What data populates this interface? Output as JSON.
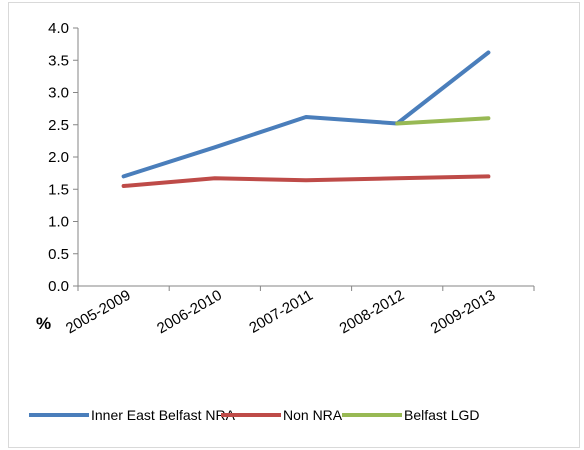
{
  "chart_data": {
    "type": "line",
    "categories": [
      "2005-2009",
      "2006-2010",
      "2007-2011",
      "2008-2012",
      "2009-2013"
    ],
    "ylim": [
      0,
      4.0
    ],
    "yticks": [
      "0.0",
      "0.5",
      "1.0",
      "1.5",
      "2.0",
      "2.5",
      "3.0",
      "3.5",
      "4.0"
    ],
    "unit_label": "%",
    "grid": false,
    "legend_position": "bottom",
    "series": [
      {
        "name": "Inner East Belfast NRA",
        "color": "#4a7ebb",
        "values": [
          1.7,
          2.15,
          2.62,
          2.52,
          3.62
        ]
      },
      {
        "name": "Non NRA",
        "color": "#be4b48",
        "values": [
          1.55,
          1.67,
          1.64,
          1.67,
          1.7
        ]
      },
      {
        "name": "Belfast LGD",
        "color": "#98b954",
        "values": [
          null,
          null,
          null,
          2.52,
          2.6
        ]
      }
    ]
  }
}
